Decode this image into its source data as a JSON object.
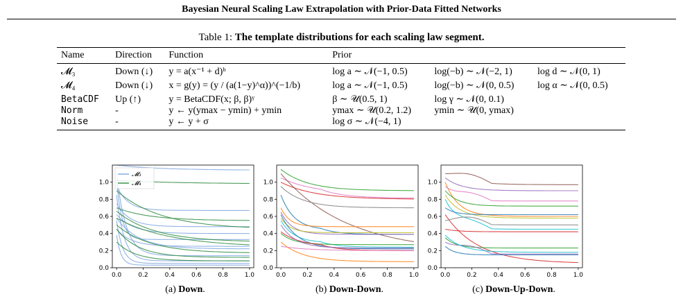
{
  "running_head": "Bayesian Neural Scaling Law Extrapolation with Prior-Data Fitted Networks",
  "table_caption": {
    "prefix": "Table 1: ",
    "bold": "The template distributions for each scaling law segment."
  },
  "table": {
    "headers": [
      "Name",
      "Direction",
      "Function",
      "Prior"
    ],
    "rows": [
      {
        "name": "𝓜₃",
        "direction": "Down (↓)",
        "function": "y = a(x⁻¹ + d)ᵇ",
        "prior": [
          "log a ∼ 𝒩(−1, 0.5)",
          "log(−b) ∼ 𝒩(−2, 1)",
          "log d ∼ 𝒩(0, 1)"
        ]
      },
      {
        "name": "𝓜₄",
        "direction": "Down (↓)",
        "function": "x = g(y) = (y / (a(1−y)^α))^(−1/b)",
        "prior": [
          "log a ∼ 𝒩(−1, 0.5)",
          "log(−b) ∼ 𝒩(0, 0.5)",
          "log α ∼ 𝒩(0, 0.5)"
        ]
      },
      {
        "name": "BetaCDF",
        "direction": "Up (↑)",
        "function": "y = BetaCDF(x; β, β)ᵞ",
        "prior": [
          "β ∼ 𝒰(0.5, 1)",
          "log γ ∼ 𝒩(0, 0.1)",
          ""
        ]
      },
      {
        "name": "Norm",
        "direction": "-",
        "function": "y ← y(ymax − ymin) + ymin",
        "prior": [
          "ymax ∼ 𝒰(0.2, 1.2)",
          "ymin ∼ 𝒰(0, ymax)",
          ""
        ]
      },
      {
        "name": "Noise",
        "direction": "-",
        "function": "y ← y + σ",
        "prior": [
          "log σ ∼ 𝒩(−4, 1)",
          "",
          ""
        ]
      }
    ]
  },
  "chart_data": [
    {
      "type": "line",
      "caption_prefix": "(a) ",
      "caption_bold": "Down",
      "caption_suffix": ".",
      "xlim": [
        0,
        1
      ],
      "ylim": [
        0,
        1.2
      ],
      "xticks": [
        "0.0",
        "0.2",
        "0.4",
        "0.6",
        "0.8",
        "1.0"
      ],
      "yticks": [
        "0.0",
        "0.2",
        "0.4",
        "0.6",
        "0.8",
        "1.0"
      ],
      "legend": [
        {
          "label": "𝓜₃",
          "color": "#7ea6e0"
        },
        {
          "label": "𝓜₄",
          "color": "#2e8b3e"
        }
      ],
      "series": [
        {
          "color": "#7ea6e0",
          "y0": 1.2,
          "yend": 1.14,
          "k": 3
        },
        {
          "color": "#7ea6e0",
          "y0": 0.96,
          "yend": 0.67,
          "k": 12
        },
        {
          "color": "#7ea6e0",
          "y0": 0.75,
          "yend": 0.48,
          "k": 10
        },
        {
          "color": "#7ea6e0",
          "y0": 0.62,
          "yend": 0.4,
          "k": 8
        },
        {
          "color": "#7ea6e0",
          "y0": 0.58,
          "yend": 0.22,
          "k": 6
        },
        {
          "color": "#7ea6e0",
          "y0": 1.1,
          "yend": 0.14,
          "k": 14
        },
        {
          "color": "#7ea6e0",
          "y0": 0.85,
          "yend": 0.08,
          "k": 18
        },
        {
          "color": "#7ea6e0",
          "y0": 0.55,
          "yend": 0.05,
          "k": 22
        },
        {
          "color": "#7ea6e0",
          "y0": 0.45,
          "yend": 0.25,
          "k": 9
        },
        {
          "color": "#7ea6e0",
          "y0": 1.02,
          "yend": 0.33,
          "k": 25
        },
        {
          "color": "#7ea6e0",
          "y0": 0.38,
          "yend": 0.03,
          "k": 30
        },
        {
          "color": "#2e8b3e",
          "y0": 1.02,
          "yend": 0.98,
          "k": 2
        },
        {
          "color": "#2e8b3e",
          "y0": 0.7,
          "yend": 0.55,
          "k": 4
        },
        {
          "color": "#2e8b3e",
          "y0": 0.9,
          "yend": 0.45,
          "k": 3
        },
        {
          "color": "#2e8b3e",
          "y0": 0.66,
          "yend": 0.3,
          "k": 3.5
        },
        {
          "color": "#2e8b3e",
          "y0": 0.58,
          "yend": 0.24,
          "k": 2.5
        },
        {
          "color": "#2e8b3e",
          "y0": 0.5,
          "yend": 0.17,
          "k": 4
        },
        {
          "color": "#2e8b3e",
          "y0": 0.45,
          "yend": 0.12,
          "k": 6
        },
        {
          "color": "#2e8b3e",
          "y0": 0.3,
          "yend": 0.08,
          "k": 7
        }
      ]
    },
    {
      "type": "line",
      "caption_prefix": "(b) ",
      "caption_bold": "Down-Down",
      "caption_suffix": ".",
      "xlim": [
        0,
        1
      ],
      "ylim": [
        0,
        1.2
      ],
      "xticks": [
        "0.0",
        "0.2",
        "0.4",
        "0.6",
        "0.8",
        "1.0"
      ],
      "yticks": [
        "0.0",
        "0.2",
        "0.4",
        "0.6",
        "0.8",
        "1.0"
      ],
      "series": [
        {
          "color": "#2ca02c",
          "y0": 1.15,
          "yend": 0.9,
          "k": 5
        },
        {
          "color": "#e377c2",
          "y0": 1.05,
          "yend": 0.86,
          "k": 4
        },
        {
          "color": "#d62728",
          "y0": 1.0,
          "yend": 0.8,
          "k": 4
        },
        {
          "color": "#8c564b",
          "y0": 1.1,
          "yend": 0.18,
          "k": 2
        },
        {
          "color": "#7f7f7f",
          "y0": 0.95,
          "yend": 0.7,
          "k": 6
        },
        {
          "color": "#1f77b4",
          "y0": 0.85,
          "yend": 0.44,
          "k": 10
        },
        {
          "color": "#ff7f0e",
          "y0": 0.7,
          "yend": 0.48,
          "k": 15
        },
        {
          "color": "#9467bd",
          "y0": 0.65,
          "yend": 0.39,
          "k": 12
        },
        {
          "color": "#bcbd22",
          "y0": 0.58,
          "yend": 0.41,
          "k": 14
        },
        {
          "color": "#17becf",
          "y0": 0.55,
          "yend": 0.29,
          "k": 10
        },
        {
          "color": "#1f77b4",
          "y0": 0.62,
          "yend": 0.22,
          "k": 8
        },
        {
          "color": "#ff7f0e",
          "y0": 0.3,
          "yend": 0.07,
          "k": 6
        },
        {
          "color": "#2ca02c",
          "y0": 0.4,
          "yend": 0.27,
          "k": 10
        },
        {
          "color": "#d62728",
          "y0": 0.42,
          "yend": 0.25,
          "k": 7
        },
        {
          "color": "#9467bd",
          "y0": 0.5,
          "yend": 0.23,
          "k": 9
        },
        {
          "color": "#e377c2",
          "y0": 0.25,
          "yend": 0.2,
          "k": 5
        }
      ]
    },
    {
      "type": "line",
      "caption_prefix": "(c) ",
      "caption_bold": "Down-Up-Down",
      "caption_suffix": ".",
      "xlim": [
        0,
        1
      ],
      "ylim": [
        0,
        1.2
      ],
      "xticks": [
        "0.0",
        "0.2",
        "0.4",
        "0.6",
        "0.8",
        "1.0"
      ],
      "yticks": [
        "0.0",
        "0.2",
        "0.4",
        "0.6",
        "0.8",
        "1.0"
      ],
      "series": [
        {
          "color": "#8c564b",
          "y0": 1.1,
          "yend": 0.97,
          "k": 6
        },
        {
          "color": "#9467bd",
          "y0": 1.05,
          "yend": 0.9,
          "k": 8
        },
        {
          "color": "#ff7f0e",
          "y0": 1.0,
          "yend": 0.6,
          "k": 10
        },
        {
          "color": "#e377c2",
          "y0": 0.95,
          "yend": 0.78,
          "k": 12
        },
        {
          "color": "#2ca02c",
          "y0": 0.9,
          "yend": 0.72,
          "k": 10
        },
        {
          "color": "#bcbd22",
          "y0": 0.85,
          "yend": 0.58,
          "k": 9
        },
        {
          "color": "#17becf",
          "y0": 0.8,
          "yend": 0.45,
          "k": 12
        },
        {
          "color": "#d62728",
          "y0": 0.62,
          "yend": 0.05,
          "k": 4
        },
        {
          "color": "#1f77b4",
          "y0": 0.7,
          "yend": 0.62,
          "k": 14
        },
        {
          "color": "#7f7f7f",
          "y0": 0.55,
          "yend": 0.5,
          "k": 8
        },
        {
          "color": "#d62728",
          "y0": 0.45,
          "yend": 0.42,
          "k": 10
        },
        {
          "color": "#2ca02c",
          "y0": 0.35,
          "yend": 0.23,
          "k": 12
        },
        {
          "color": "#9467bd",
          "y0": 0.3,
          "yend": 0.16,
          "k": 12
        },
        {
          "color": "#1f77b4",
          "y0": 0.25,
          "yend": 0.15,
          "k": 14
        },
        {
          "color": "#17becf",
          "y0": 0.38,
          "yend": 0.18,
          "k": 8
        }
      ]
    }
  ]
}
